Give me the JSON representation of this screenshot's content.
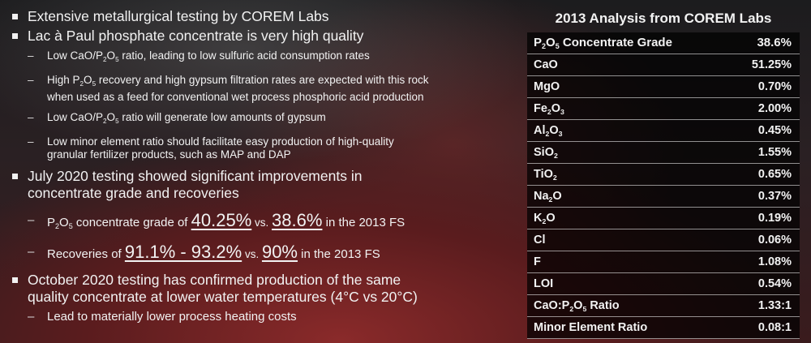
{
  "bullets": {
    "b1": "Extensive metallurgical testing by COREM Labs",
    "b2": "Lac à Paul phosphate concentrate is very high quality",
    "b2_s1": {
      "a": "Low CaO/P",
      "sub": "2",
      "b": "O",
      "sub2": "5",
      "c": " ratio, leading to low sulfuric acid consumption rates"
    },
    "b2_s2": {
      "a": "High P",
      "sub": "2",
      "b": "O",
      "sub2": "5",
      "c": " recovery and high gypsum filtration rates are expected with this rock",
      "d": "when used as a feed for conventional wet process phosphoric acid production"
    },
    "b2_s3": {
      "a": "Low CaO/P",
      "sub": "2",
      "b": "O",
      "sub2": "5",
      "c": " ratio will generate low amounts of gypsum"
    },
    "b2_s4": {
      "a": "Low minor element ratio should facilitate easy production of high-quality",
      "b": "granular fertilizer products, such as MAP and DAP"
    },
    "b3": {
      "a": "July 2020 testing showed significant improvements in",
      "b": "concentrate grade and recoveries"
    },
    "b3_s1": {
      "a": "P",
      "sub": "2",
      "b": "O",
      "sub2": "5",
      "c": " concentrate grade of ",
      "v1": "40.25%",
      "vs": " vs. ",
      "v2": "38.6%",
      "d": " in the 2013 FS"
    },
    "b3_s2": {
      "a": "Recoveries of ",
      "v1": "91.1% - 93.2%",
      "vs": " vs. ",
      "v2": "90%",
      "d": " in the 2013 FS"
    },
    "b4": {
      "a": "October 2020 testing has confirmed production of the same",
      "b": "quality concentrate at lower water temperatures (4°C vs 20°C)"
    },
    "b4_s1": "Lead to materially lower process heating costs"
  },
  "panel": {
    "title": "2013 Analysis from COREM Labs",
    "rows": [
      {
        "pre": "P",
        "s1": "2",
        "mid": "O",
        "s2": "5",
        "post": " Concentrate Grade",
        "value": "38.6%"
      },
      {
        "pre": "CaO",
        "s1": "",
        "mid": "",
        "s2": "",
        "post": "",
        "value": "51.25%"
      },
      {
        "pre": "MgO",
        "s1": "",
        "mid": "",
        "s2": "",
        "post": "",
        "value": "0.70%"
      },
      {
        "pre": "Fe",
        "s1": "2",
        "mid": "O",
        "s2": "3",
        "post": "",
        "value": "2.00%"
      },
      {
        "pre": "Al",
        "s1": "2",
        "mid": "O",
        "s2": "3",
        "post": "",
        "value": "0.45%"
      },
      {
        "pre": "SiO",
        "s1": "2",
        "mid": "",
        "s2": "",
        "post": "",
        "value": "1.55%"
      },
      {
        "pre": "TiO",
        "s1": "2",
        "mid": "",
        "s2": "",
        "post": "",
        "value": "0.65%"
      },
      {
        "pre": "Na",
        "s1": "2",
        "mid": "O",
        "s2": "",
        "post": "",
        "value": "0.37%"
      },
      {
        "pre": "K",
        "s1": "2",
        "mid": "O",
        "s2": "",
        "post": "",
        "value": "0.19%"
      },
      {
        "pre": "Cl",
        "s1": "",
        "mid": "",
        "s2": "",
        "post": "",
        "value": "0.06%"
      },
      {
        "pre": "F",
        "s1": "",
        "mid": "",
        "s2": "",
        "post": "",
        "value": "1.08%"
      },
      {
        "pre": "LOI",
        "s1": "",
        "mid": "",
        "s2": "",
        "post": "",
        "value": "0.54%"
      },
      {
        "pre": "CaO:P",
        "s1": "2",
        "mid": "O",
        "s2": "5",
        "post": " Ratio",
        "value": "1.33:1"
      },
      {
        "pre": "Minor Element Ratio",
        "s1": "",
        "mid": "",
        "s2": "",
        "post": "",
        "value": "0.08:1"
      }
    ]
  }
}
